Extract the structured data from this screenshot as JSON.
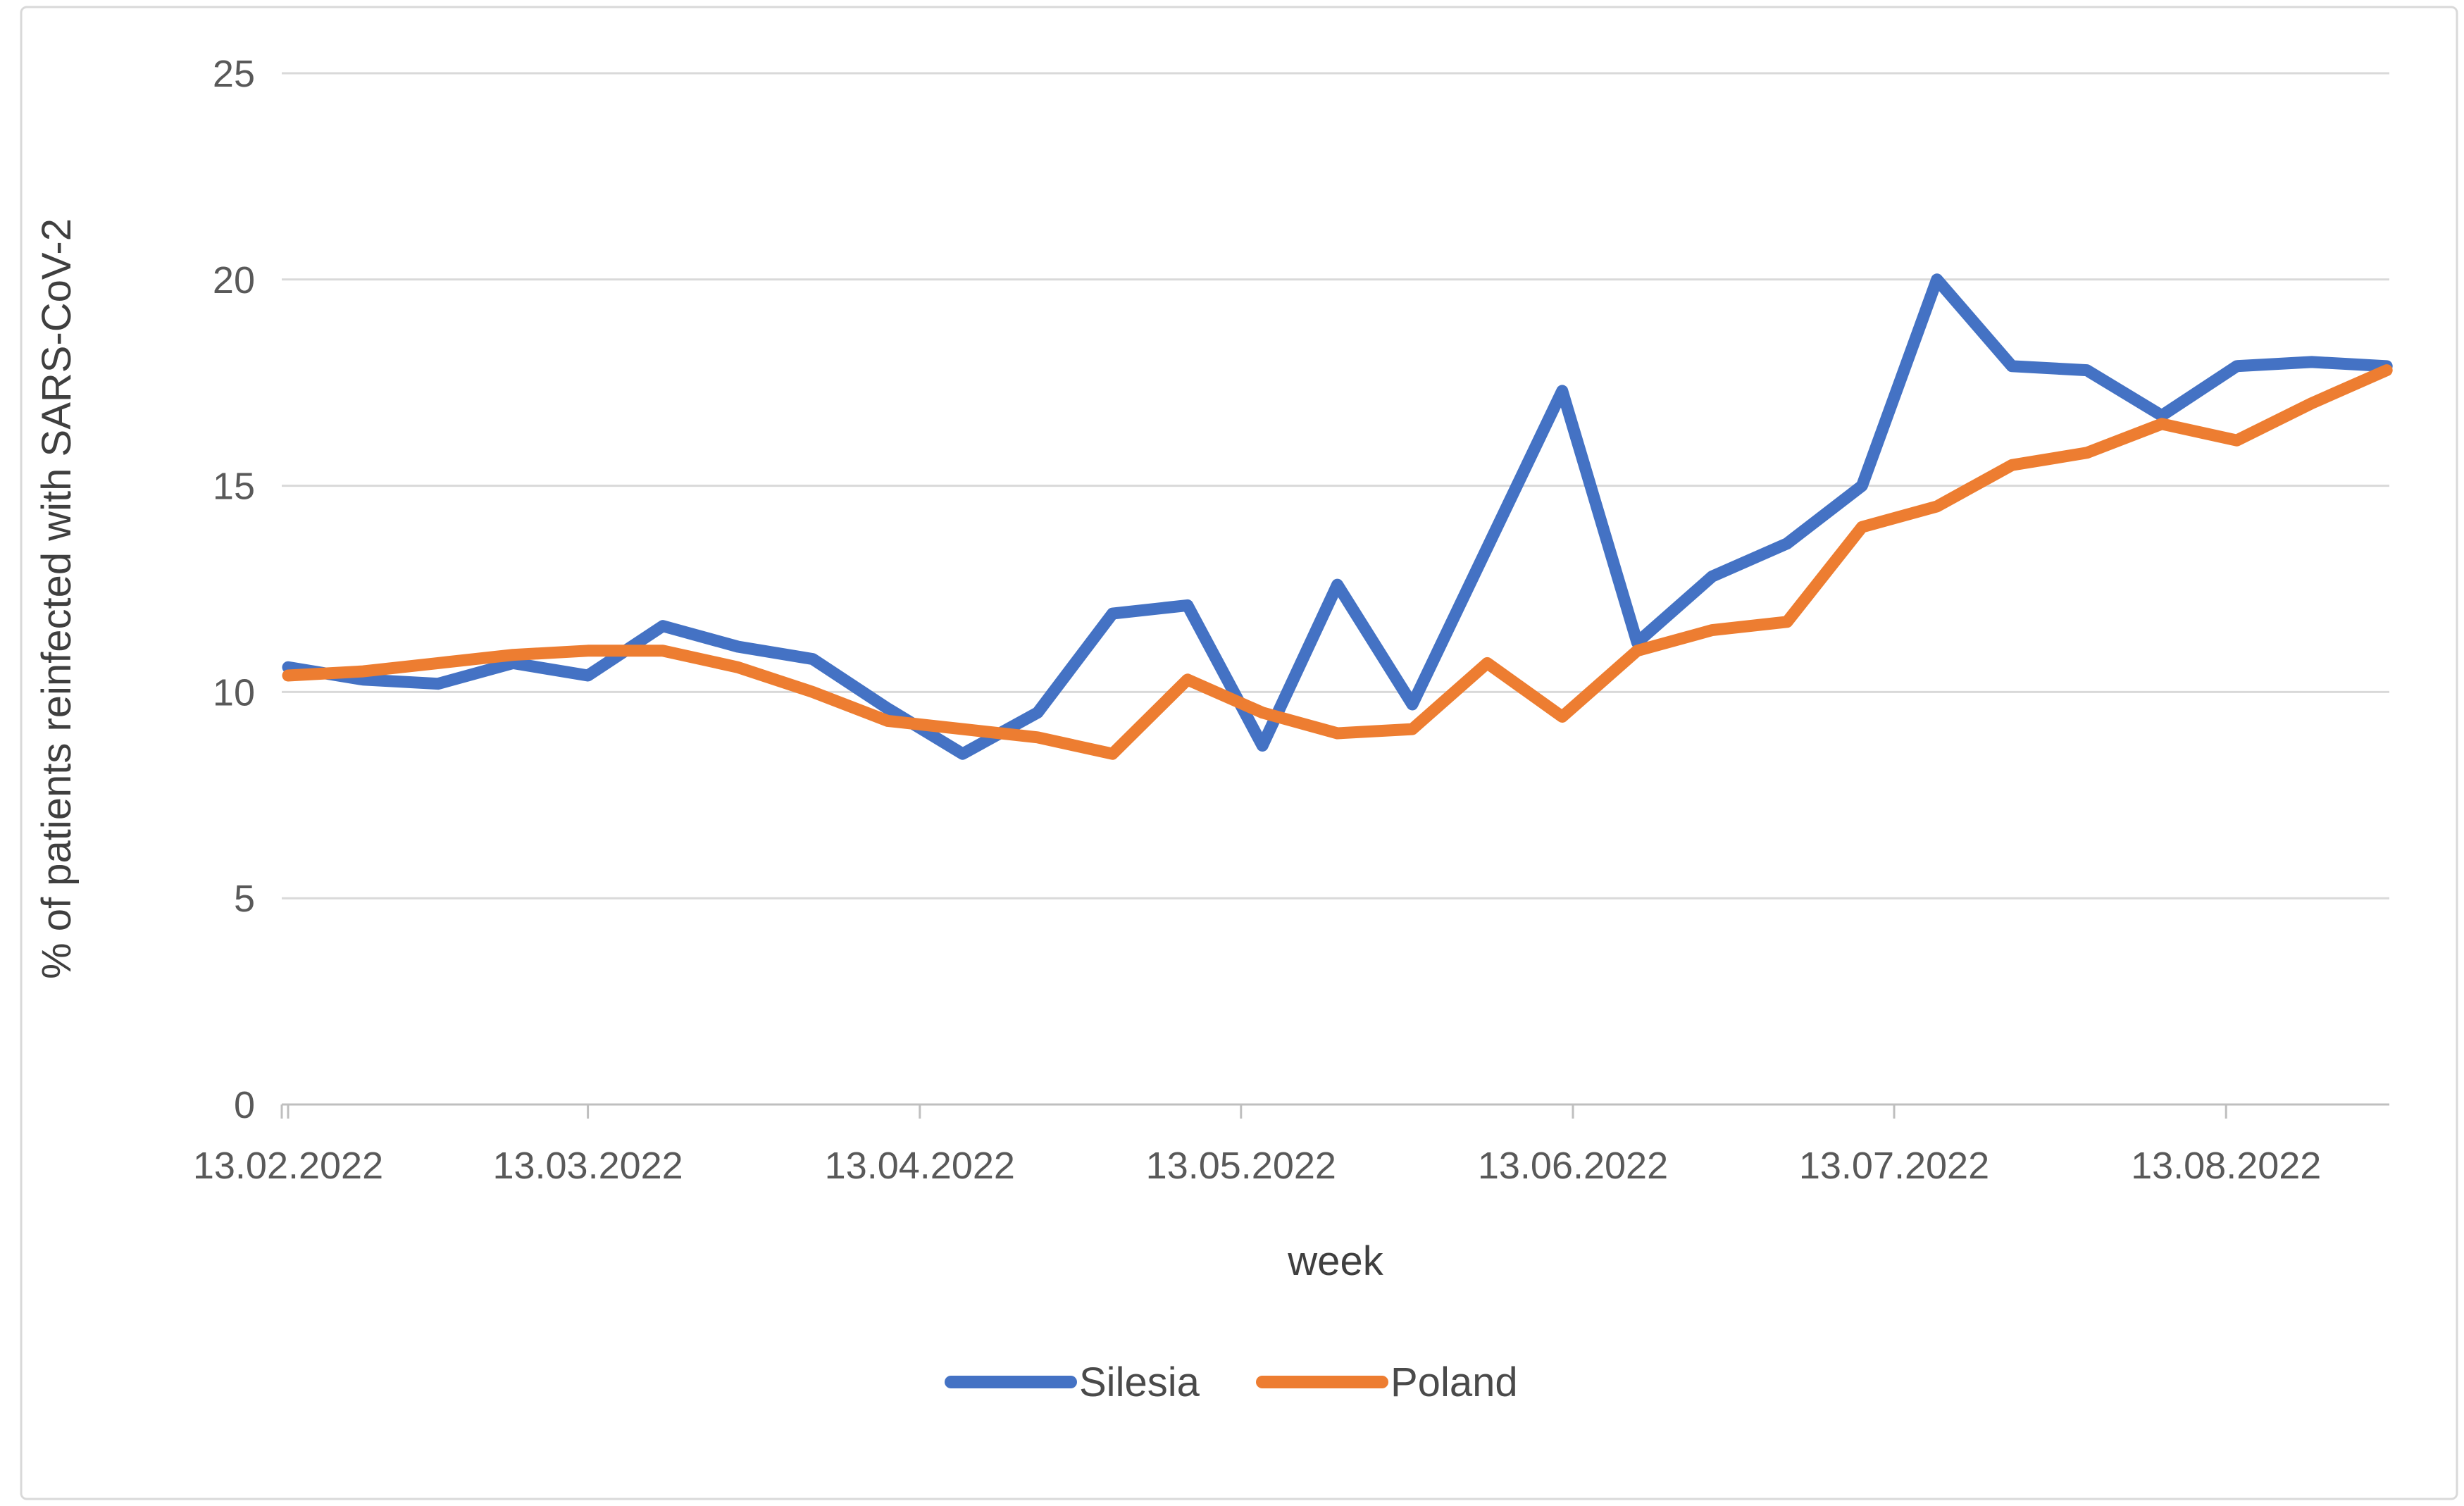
{
  "chart_data": {
    "type": "line",
    "title": "",
    "xlabel": "week",
    "ylabel": "% of patients reinfected with SARS-CoV-2",
    "ylim": [
      0,
      25
    ],
    "yticks": [
      0,
      5,
      10,
      15,
      20,
      25
    ],
    "grid": "horizontal",
    "legend_position": "bottom-center",
    "x_tick_labels": [
      "13.02.2022",
      "13.03.2022",
      "13.04.2022",
      "13.05.2022",
      "13.06.2022",
      "13.07.2022",
      "13.08.2022"
    ],
    "x_tick_day_offsets": [
      0,
      28,
      59,
      89,
      120,
      150,
      181
    ],
    "categories": [
      "13.02.2022",
      "20.02.2022",
      "27.02.2022",
      "06.03.2022",
      "13.03.2022",
      "20.03.2022",
      "27.03.2022",
      "03.04.2022",
      "10.04.2022",
      "17.04.2022",
      "24.04.2022",
      "01.05.2022",
      "08.05.2022",
      "15.05.2022",
      "22.05.2022",
      "29.05.2022",
      "05.06.2022",
      "12.06.2022",
      "19.06.2022",
      "26.06.2022",
      "03.07.2022",
      "10.07.2022",
      "17.07.2022",
      "24.07.2022",
      "31.07.2022",
      "07.08.2022",
      "14.08.2022",
      "21.08.2022",
      "28.08.2022"
    ],
    "series": [
      {
        "name": "Silesia",
        "color": "#4472C4",
        "values": [
          10.6,
          10.3,
          10.2,
          10.7,
          10.4,
          11.6,
          11.1,
          10.8,
          9.6,
          8.5,
          9.5,
          11.9,
          12.1,
          8.7,
          12.6,
          9.7,
          13.5,
          17.3,
          11.2,
          12.8,
          13.6,
          15.0,
          20.0,
          17.9,
          17.8,
          16.7,
          17.9,
          18.0,
          17.9
        ]
      },
      {
        "name": "Poland",
        "color": "#ED7D31",
        "values": [
          10.4,
          10.5,
          10.7,
          10.9,
          11.0,
          11.0,
          10.6,
          10.0,
          9.3,
          9.1,
          8.9,
          8.5,
          10.3,
          9.5,
          9.0,
          9.1,
          10.7,
          9.4,
          11.0,
          11.5,
          11.7,
          14.0,
          14.5,
          15.5,
          15.8,
          16.5,
          16.1,
          17.0,
          17.8
        ]
      }
    ],
    "colors": {
      "gridline": "#D9D9D9",
      "axis_line": "#BFBFBF",
      "tick_text": "#595959",
      "chart_border": "#D9D9D9",
      "background": "#FFFFFF"
    }
  }
}
